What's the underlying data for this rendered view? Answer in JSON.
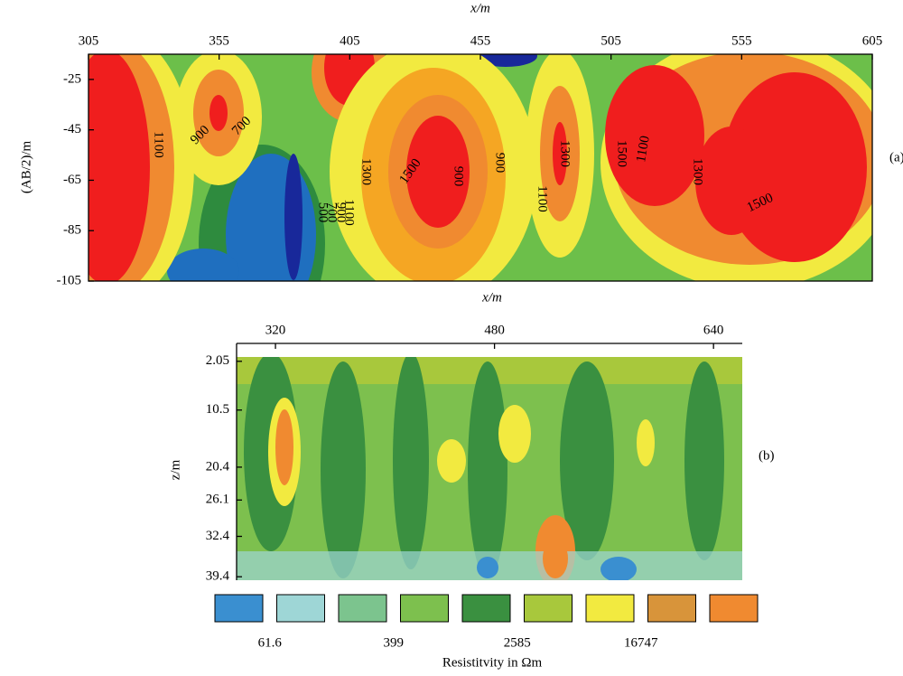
{
  "chart_data": [
    {
      "type": "contour",
      "xlabel": "x/m",
      "ylabel": "(AB/2)/m",
      "panel_label": "(a)",
      "xlim": [
        305,
        605
      ],
      "xticks": [
        305,
        355,
        405,
        455,
        505,
        555,
        605
      ],
      "ylim": [
        -105,
        -15
      ],
      "yticks": [
        -25,
        -45,
        -65,
        -85,
        -105
      ],
      "contour_labels": [
        "1100",
        "900",
        "700",
        "500",
        "700",
        "900",
        "1100",
        "1300",
        "1500",
        "900",
        "900",
        "1100",
        "1300",
        "1500",
        "1100",
        "1300",
        "1500"
      ]
    },
    {
      "type": "heatmap",
      "xlabel": "x/m",
      "ylabel": "z/m",
      "panel_label": "(b)",
      "xlim": [
        291.6,
        661
      ],
      "xticks": [
        320,
        480,
        640
      ],
      "ylim": [
        1.3,
        40
      ],
      "yticks": [
        2.05,
        10.5,
        20.4,
        26.1,
        32.4,
        39.4
      ],
      "y_inverted": true,
      "legend_colors": [
        "#3a8fd0",
        "#9ed6d6",
        "#7cc48e",
        "#7dc04e",
        "#3a9040",
        "#a8c83c",
        "#f2ea40",
        "#d8943a",
        "#f08a30"
      ],
      "legend_labels": [
        61.6,
        399,
        2585,
        16747
      ],
      "legend_title": "Resistitvity in Ωm"
    }
  ]
}
